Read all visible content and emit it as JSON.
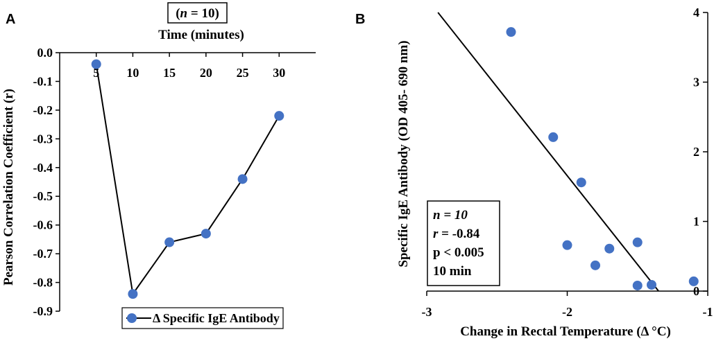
{
  "chart_data": [
    {
      "panel": "A",
      "type": "line",
      "title": "(n = 10)",
      "title_parts": {
        "open": "(",
        "italic": "n",
        "rest": " = 10)"
      },
      "xlabel": "Time (minutes)",
      "ylabel": "Pearson Correlation Coefficient (r)",
      "x_axis_position": "top",
      "x": [
        5,
        10,
        15,
        20,
        25,
        30
      ],
      "x_tick_labels": [
        "5",
        "10",
        "15",
        "20",
        "25",
        "30"
      ],
      "ylim": [
        -0.9,
        0.0
      ],
      "y_ticks": [
        0.0,
        -0.1,
        -0.2,
        -0.3,
        -0.4,
        -0.5,
        -0.6,
        -0.7,
        -0.8,
        -0.9
      ],
      "y_tick_labels": [
        "0.0",
        "-0.1",
        "-0.2",
        "-0.3",
        "-0.4",
        "-0.5",
        "-0.6",
        "-0.7",
        "-0.8",
        "-0.9"
      ],
      "series": [
        {
          "name": "Δ Specific IgE Antibody",
          "values": [
            -0.04,
            -0.84,
            -0.66,
            -0.63,
            -0.44,
            -0.22
          ],
          "color": "#4472c4"
        }
      ],
      "legend": "bottom-center"
    },
    {
      "panel": "B",
      "type": "scatter",
      "xlabel": "Change in Rectal Temperature (Δ °C)",
      "ylabel": "Specific IgE Antibody (OD 405- 690 nm)",
      "xlim": [
        -3,
        -1
      ],
      "x_ticks": [
        -3,
        -2,
        -1
      ],
      "x_tick_labels": [
        "-3",
        "-2",
        "-1"
      ],
      "ylim": [
        0,
        4
      ],
      "y_ticks": [
        0,
        1,
        2,
        3,
        4
      ],
      "y_tick_labels": [
        "0",
        "1",
        "2",
        "3",
        "4"
      ],
      "y_axis_position": "right",
      "points": [
        {
          "x": -2.4,
          "y": 3.72
        },
        {
          "x": -2.1,
          "y": 2.21
        },
        {
          "x": -1.9,
          "y": 1.56
        },
        {
          "x": -2.0,
          "y": 0.66
        },
        {
          "x": -1.8,
          "y": 0.37
        },
        {
          "x": -1.7,
          "y": 0.61
        },
        {
          "x": -1.5,
          "y": 0.7
        },
        {
          "x": -1.5,
          "y": 0.08
        },
        {
          "x": -1.4,
          "y": 0.09
        },
        {
          "x": -1.1,
          "y": 0.14
        }
      ],
      "point_color": "#4472c4",
      "trendline": {
        "x1": -2.92,
        "y1": 4.0,
        "x2": -1.35,
        "y2": 0.0
      },
      "annotations": [
        {
          "key": "n",
          "label": "n",
          "value": " = 10",
          "italic_label": true
        },
        {
          "key": "r",
          "label": "r",
          "value": " = -0.84",
          "italic_label": true
        },
        {
          "key": "p",
          "label": "",
          "value": "p < 0.005",
          "italic_label": false
        },
        {
          "key": "t",
          "label": "",
          "value": "10 min",
          "italic_label": false
        }
      ]
    }
  ]
}
